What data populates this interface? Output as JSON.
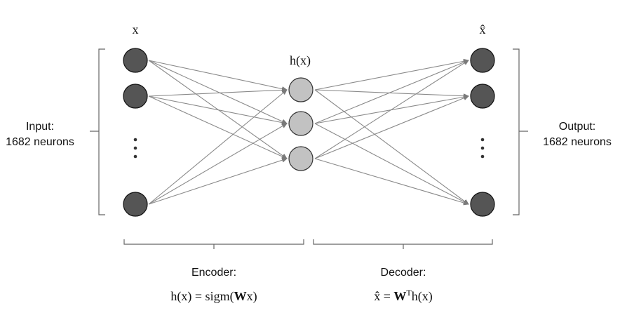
{
  "layers": {
    "input": {
      "symbol": "x",
      "caption_line1": "Input:",
      "caption_line2": "1682 neurons",
      "node_color": "#555555"
    },
    "hidden": {
      "symbol": "h(x)",
      "node_color": "#c2c2c2"
    },
    "output": {
      "symbol": "x̂",
      "caption_line1": "Output:",
      "caption_line2": "1682 neurons",
      "node_color": "#555555"
    }
  },
  "stages": {
    "encoder": {
      "label": "Encoder:",
      "formula_lhs": "h(x) = sigm(",
      "formula_bold": "W",
      "formula_rhs": "x)"
    },
    "decoder": {
      "label": "Decoder:",
      "formula_lhs": "x̂ = ",
      "formula_bold": "W",
      "formula_sup": "T",
      "formula_rhs": "h(x)"
    }
  },
  "colors": {
    "connection": "#8a8a8a",
    "bracket": "#666666"
  }
}
